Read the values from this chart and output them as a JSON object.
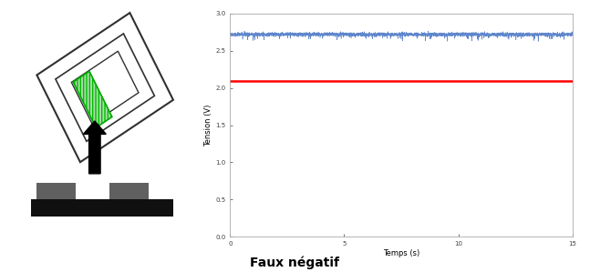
{
  "title": "Faux négatif",
  "xlabel": "Temps (s)",
  "ylabel": "Tension (V)",
  "xlim": [
    0,
    15
  ],
  "ylim": [
    0,
    3
  ],
  "yticks": [
    0,
    0.5,
    1,
    1.5,
    2,
    2.5,
    3
  ],
  "xticks": [
    0,
    5,
    10,
    15
  ],
  "blue_mean": 2.72,
  "blue_noise": 0.012,
  "red_line": 2.1,
  "duration": 15,
  "num_points": 5000,
  "signal_color": "#4472C4",
  "threshold_color": "#FF0000",
  "background_color": "#FFFFFF",
  "title_fontsize": 10,
  "label_fontsize": 6,
  "tick_fontsize": 5
}
